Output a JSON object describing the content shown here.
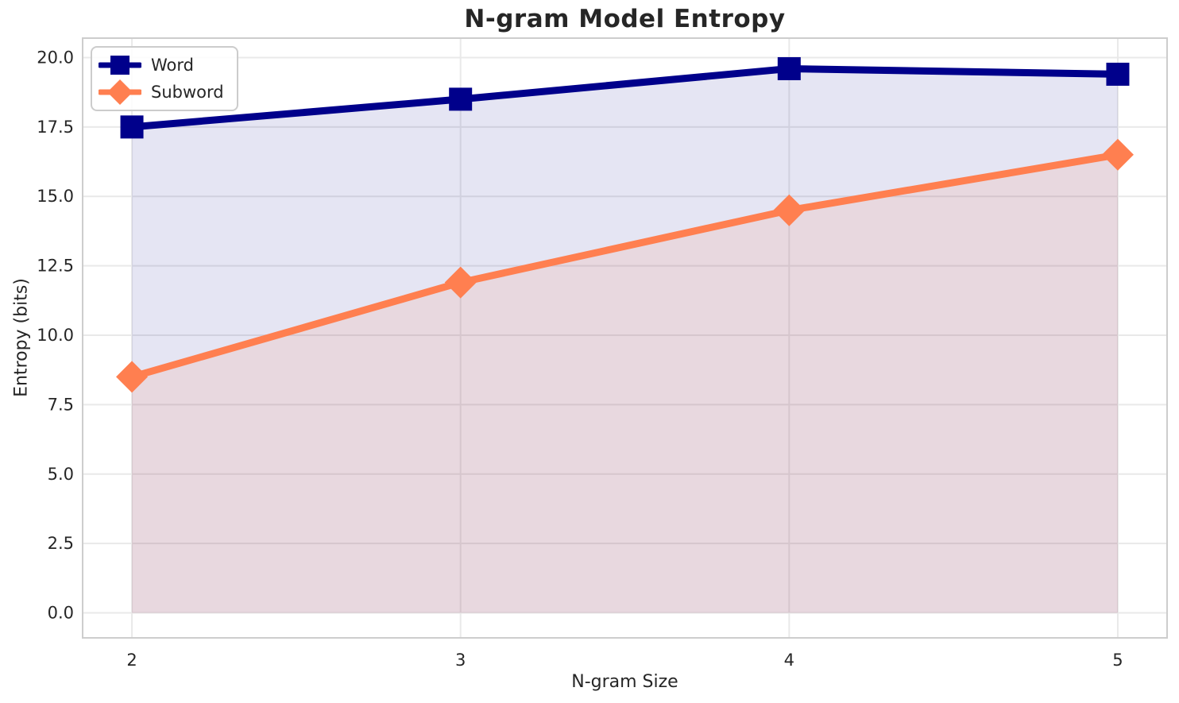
{
  "chart_data": {
    "type": "line",
    "title": "N-gram Model Entropy",
    "xlabel": "N-gram Size",
    "ylabel": "Entropy (bits)",
    "x": [
      2,
      3,
      4,
      5
    ],
    "series": [
      {
        "name": "Word",
        "color": "#00008B",
        "marker": "square",
        "values": [
          17.5,
          18.5,
          19.6,
          19.4
        ],
        "fill_to_zero": true,
        "fill_opacity": 0.1
      },
      {
        "name": "Subword",
        "color": "#FF7F50",
        "marker": "diamond",
        "values": [
          8.5,
          11.9,
          14.5,
          16.5
        ],
        "fill_to_zero": true,
        "fill_opacity": 0.12
      }
    ],
    "xlim": [
      1.85,
      5.15
    ],
    "ylim": [
      -0.9,
      20.7
    ],
    "xticks": [
      2,
      3,
      4,
      5
    ],
    "xtick_labels": [
      "2",
      "3",
      "4",
      "5"
    ],
    "yticks": [
      0,
      2.5,
      5,
      7.5,
      10,
      12.5,
      15,
      17.5,
      20
    ],
    "ytick_labels": [
      "0.0",
      "2.5",
      "5.0",
      "7.5",
      "10.0",
      "12.5",
      "15.0",
      "17.5",
      "20.0"
    ],
    "grid": true,
    "legend_position": "upper left",
    "grid_color": "#e9e9e9",
    "spine_color": "#cdcdcd",
    "text_color": "#262626"
  }
}
